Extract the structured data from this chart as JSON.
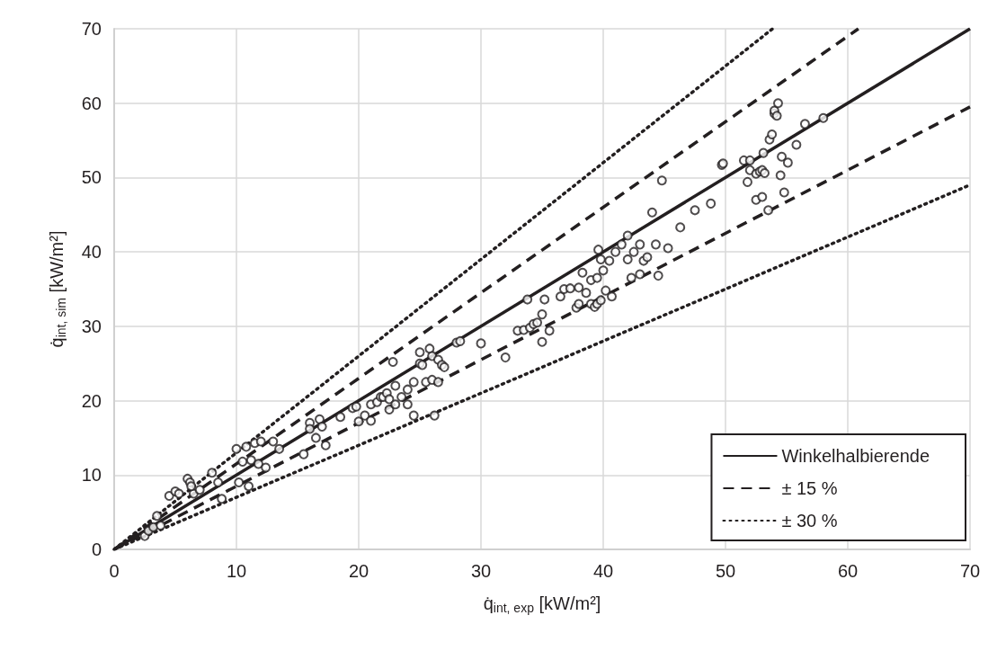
{
  "chart_data": {
    "type": "scatter",
    "xlabel": "q̇$_{int, exp}$ [kW/m²]",
    "ylabel": "q̇$_{int, sim}$ [kW/m²]",
    "xlim": [
      0,
      70
    ],
    "ylim": [
      0,
      70
    ],
    "xticks": [
      0,
      10,
      20,
      30,
      40,
      50,
      60,
      70
    ],
    "yticks": [
      0,
      10,
      20,
      30,
      40,
      50,
      60,
      70
    ],
    "grid": true,
    "legend": "bottom right",
    "series": [
      {
        "color": "#231f20",
        "marker": "circle",
        "x": [
          2.5,
          2.8,
          3.2,
          3.5,
          3.8,
          4.5,
          5,
          5.3,
          6,
          6.2,
          6.5,
          6.3,
          7,
          8,
          8.5,
          8.8,
          10,
          10.2,
          10.5,
          10.8,
          11,
          11.2,
          11.5,
          11.8,
          12,
          12.4,
          13,
          13.5,
          15.5,
          16,
          16,
          16.5,
          16.8,
          17.3,
          17,
          18.5,
          19.5,
          19.8,
          20,
          20.5,
          21,
          21,
          21.5,
          21.8,
          22,
          22.3,
          22.5,
          22.5,
          23,
          23,
          22.8,
          23.5,
          24,
          24,
          24.5,
          24.5,
          25,
          25,
          25.2,
          25.5,
          25.8,
          26,
          26.2,
          26,
          26.5,
          26.5,
          26.8,
          27,
          28,
          28.3,
          30,
          32,
          33,
          33.5,
          33.8,
          34,
          34.3,
          34.6,
          35,
          35,
          35.2,
          35.6,
          36.5,
          36.8,
          37.3,
          37.8,
          38,
          38,
          38.3,
          38.6,
          39,
          39,
          39.3,
          39.5,
          39.5,
          39.6,
          39.8,
          39.8,
          40,
          40.2,
          40.5,
          40.7,
          41,
          41.5,
          42,
          42,
          42.3,
          42.5,
          43,
          43,
          43.3,
          43.6,
          44,
          44.3,
          44.5,
          44.8,
          45.3,
          46.3,
          47.5,
          48.8,
          49.7,
          49.8,
          51.5,
          51.8,
          52,
          52,
          52.5,
          52.8,
          52.5,
          53,
          53.2,
          53.1,
          53,
          53.5,
          53.6,
          53.8,
          54,
          54,
          54.2,
          54.3,
          54.5,
          54.6,
          54.8,
          55.1,
          55.8,
          56.5,
          58
        ],
        "values": [
          1.8,
          2.5,
          3,
          4.5,
          3.2,
          7.2,
          7.8,
          7.5,
          9.5,
          9,
          7.5,
          8.5,
          8,
          10.3,
          9,
          6.8,
          13.5,
          9,
          11.8,
          13.8,
          8.5,
          12,
          14.3,
          11.5,
          14.5,
          11,
          14.5,
          13.5,
          12.8,
          17,
          16.2,
          15,
          17.5,
          14,
          16.5,
          17.8,
          19,
          19.2,
          17.2,
          18,
          17.3,
          19.5,
          19.8,
          20.5,
          20.5,
          21,
          18.8,
          20.2,
          19.5,
          22,
          25.2,
          20.5,
          21.5,
          19.5,
          22.5,
          18,
          25,
          26.5,
          24.8,
          22.5,
          27,
          22.8,
          18,
          26,
          25.5,
          22.5,
          24.8,
          24.5,
          27.8,
          28,
          27.7,
          25.8,
          29.4,
          29.5,
          33.6,
          29.8,
          30.3,
          30.5,
          27.9,
          31.6,
          33.6,
          29.4,
          34,
          35,
          35.1,
          32.5,
          33,
          35.2,
          37.2,
          34.5,
          33,
          36.2,
          32.6,
          33,
          36.5,
          40.3,
          33.5,
          39,
          37.5,
          34.8,
          38.8,
          34,
          40,
          41,
          42.2,
          39,
          36.5,
          40,
          37,
          41,
          38.8,
          39.3,
          45.3,
          41,
          36.8,
          49.6,
          40.5,
          43.3,
          45.6,
          46.5,
          51.7,
          51.9,
          52.3,
          49.4,
          52.3,
          51,
          50.5,
          50.8,
          47,
          51,
          50.6,
          53.3,
          47.4,
          45.6,
          55.1,
          55.8,
          58.6,
          59,
          58.3,
          60,
          50.3,
          52.8,
          48,
          52,
          54.4,
          57.2,
          58
        ]
      },
      {
        "type": "line",
        "name": "Winkelhalbierende",
        "color": "#231f20",
        "line_style": "solid",
        "x": [
          0,
          70
        ],
        "values": [
          0,
          70
        ]
      },
      {
        "type": "line",
        "name": "± 15 %",
        "color": "#231f20",
        "line_style": "dashed",
        "x": [
          0,
          60.87,
          null,
          0,
          70
        ],
        "values": [
          0,
          70,
          null,
          0,
          59.5
        ]
      },
      {
        "type": "line",
        "name": "± 30 %",
        "color": "#231f20",
        "line_style": "dotted",
        "x": [
          0,
          53.85,
          null,
          0,
          70
        ],
        "values": [
          0,
          70,
          null,
          0,
          49
        ]
      }
    ]
  }
}
